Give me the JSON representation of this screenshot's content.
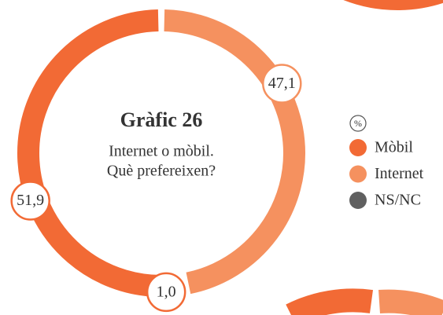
{
  "chart_data": {
    "type": "donut",
    "title": "Gràfic 26",
    "subtitle": [
      "Internet o mòbil.",
      "Què prefereixen?"
    ],
    "legend_title": "%",
    "legend": "right",
    "categories": [
      "Internet",
      "NS/NC",
      "Mòbil"
    ],
    "values": [
      47.1,
      1.0,
      51.9
    ],
    "value_labels": [
      "47,1",
      "1,0",
      "51,9"
    ],
    "colors": [
      "#f5915f",
      "#606060",
      "#f26a35"
    ],
    "legend_order": [
      2,
      0,
      1
    ]
  }
}
